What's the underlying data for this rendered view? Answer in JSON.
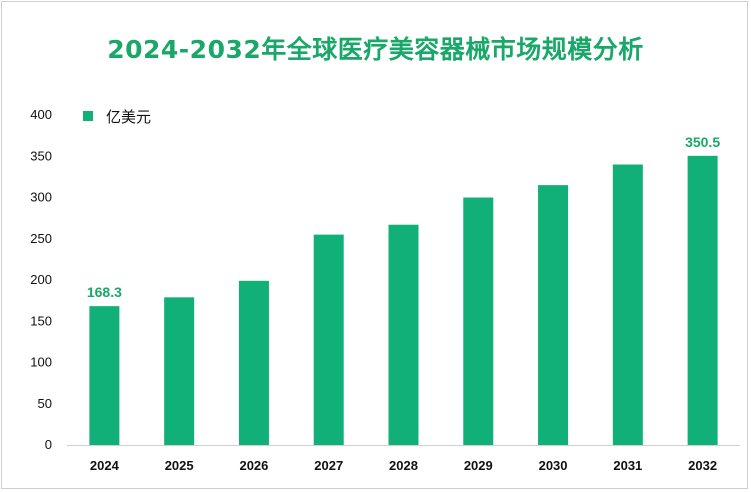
{
  "title": "2024-2032年全球医疗美容器械市场规模分析",
  "colors": {
    "bar": "#10b078",
    "title": "#1aa86a",
    "label": "#19a866"
  },
  "chart_data": {
    "type": "bar",
    "categories": [
      "2024",
      "2025",
      "2026",
      "2027",
      "2028",
      "2029",
      "2030",
      "2031",
      "2032"
    ],
    "series": [
      {
        "name": "亿美元",
        "values": [
          168.3,
          179,
          199,
          255,
          267,
          300,
          315,
          340,
          350.5
        ]
      }
    ],
    "data_labels": {
      "2024": "168.3",
      "2032": "350.5"
    },
    "xlabel": "",
    "ylabel": "",
    "ylim": [
      0,
      400
    ],
    "yticks": [
      0,
      50,
      100,
      150,
      200,
      250,
      300,
      350,
      400
    ],
    "grid": false,
    "legend": "top-left"
  }
}
